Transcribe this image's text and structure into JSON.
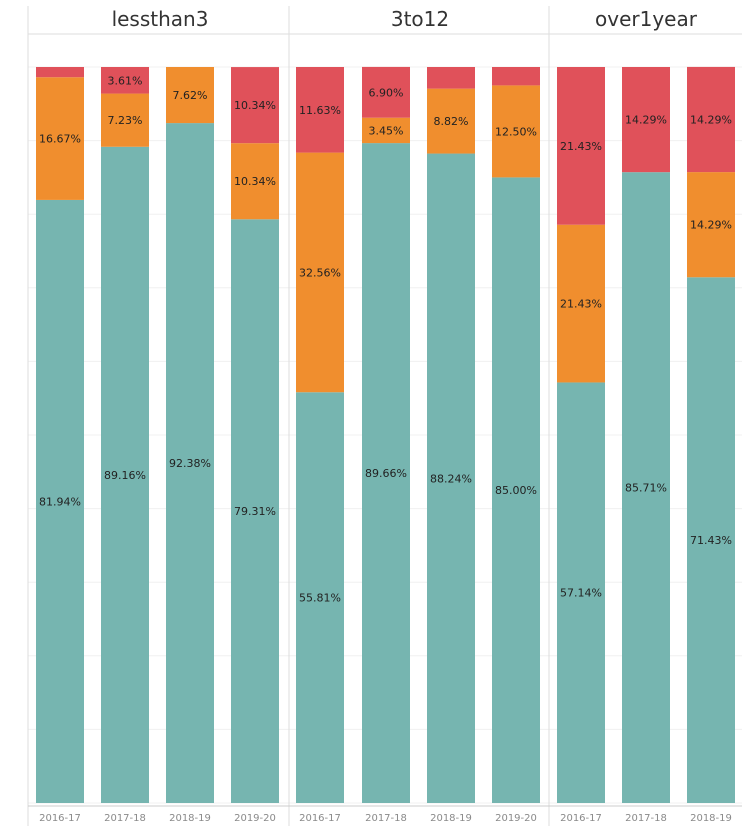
{
  "colors": {
    "bottom": "#76b5b0",
    "middle": "#f08e2e",
    "top": "#e0515a"
  },
  "chart_data": {
    "type": "bar",
    "stacked": true,
    "normalized": true,
    "ylim": [
      0,
      100
    ],
    "panels": [
      {
        "title": "lessthan3",
        "categories": [
          "2016-17",
          "2017-18",
          "2018-19",
          "2019-20"
        ],
        "series": [
          {
            "key": "bottom",
            "values": [
              81.94,
              89.16,
              92.38,
              79.31
            ],
            "labels": [
              "81.94%",
              "89.16%",
              "92.38%",
              "79.31%"
            ]
          },
          {
            "key": "middle",
            "values": [
              16.67,
              7.23,
              7.62,
              10.34
            ],
            "labels": [
              "16.67%",
              "7.23%",
              "7.62%",
              "10.34%"
            ]
          },
          {
            "key": "top",
            "values": [
              1.39,
              3.61,
              0,
              10.34
            ],
            "labels": [
              "",
              "3.61%",
              "",
              "10.34%"
            ]
          }
        ]
      },
      {
        "title": "3to12",
        "categories": [
          "2016-17",
          "2017-18",
          "2018-19",
          "2019-20"
        ],
        "series": [
          {
            "key": "bottom",
            "values": [
              55.81,
              89.66,
              88.24,
              85.0
            ],
            "labels": [
              "55.81%",
              "89.66%",
              "88.24%",
              "85.00%"
            ]
          },
          {
            "key": "middle",
            "values": [
              32.56,
              3.45,
              8.82,
              12.5
            ],
            "labels": [
              "32.56%",
              "3.45%",
              "8.82%",
              "12.50%"
            ]
          },
          {
            "key": "top",
            "values": [
              11.63,
              6.9,
              2.94,
              2.5
            ],
            "labels": [
              "11.63%",
              "6.90%",
              "",
              ""
            ]
          }
        ]
      },
      {
        "title": "over1year",
        "categories": [
          "2016-17",
          "2017-18",
          "2018-19"
        ],
        "series": [
          {
            "key": "bottom",
            "values": [
              57.14,
              85.71,
              71.43
            ],
            "labels": [
              "57.14%",
              "85.71%",
              "71.43%"
            ]
          },
          {
            "key": "middle",
            "values": [
              21.43,
              0,
              14.29
            ],
            "labels": [
              "21.43%",
              "",
              "14.29%"
            ]
          },
          {
            "key": "top",
            "values": [
              21.43,
              14.29,
              14.29
            ],
            "labels": [
              "21.43%",
              "14.29%",
              "14.29%"
            ]
          }
        ]
      }
    ]
  }
}
